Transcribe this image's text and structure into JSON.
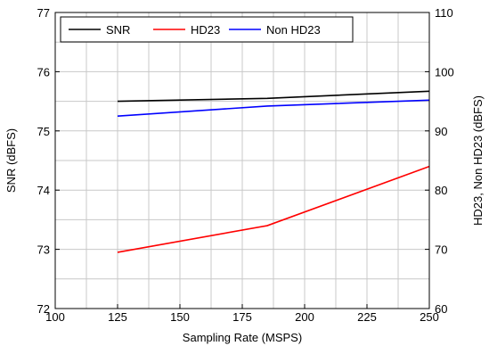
{
  "chart_data": {
    "type": "line",
    "xlabel": "Sampling Rate (MSPS)",
    "ylabel_left": "SNR (dBFS)",
    "ylabel_right": "HD23, Non HD23 (dBFS)",
    "xlim": [
      100,
      250
    ],
    "ylim_left": [
      72,
      77
    ],
    "ylim_right": [
      60,
      110
    ],
    "x_ticks": [
      100,
      125,
      150,
      175,
      200,
      225,
      250
    ],
    "x_tick_labels": [
      "100",
      "125",
      "150",
      "175",
      "200",
      "225",
      "250"
    ],
    "y_left_ticks": [
      72,
      73,
      74,
      75,
      76,
      77
    ],
    "y_left_tick_labels": [
      "72",
      "73",
      "74",
      "75",
      "76",
      "77"
    ],
    "y_right_ticks": [
      60,
      70,
      80,
      90,
      100,
      110
    ],
    "y_right_tick_labels": [
      "60",
      "70",
      "80",
      "90",
      "100",
      "110"
    ],
    "grid": true,
    "legend_position": "top-left",
    "series": [
      {
        "name": "SNR",
        "axis": "left",
        "color": "#000000",
        "x": [
          125,
          185,
          250
        ],
        "y": [
          75.5,
          75.55,
          75.67
        ]
      },
      {
        "name": "HD23",
        "axis": "right",
        "color": "#ff0000",
        "x": [
          125,
          185,
          250
        ],
        "y": [
          69.5,
          74.0,
          84.0
        ]
      },
      {
        "name": "Non HD23",
        "axis": "right",
        "color": "#0000ff",
        "x": [
          125,
          185,
          250
        ],
        "y": [
          92.5,
          94.2,
          95.2
        ]
      }
    ]
  }
}
